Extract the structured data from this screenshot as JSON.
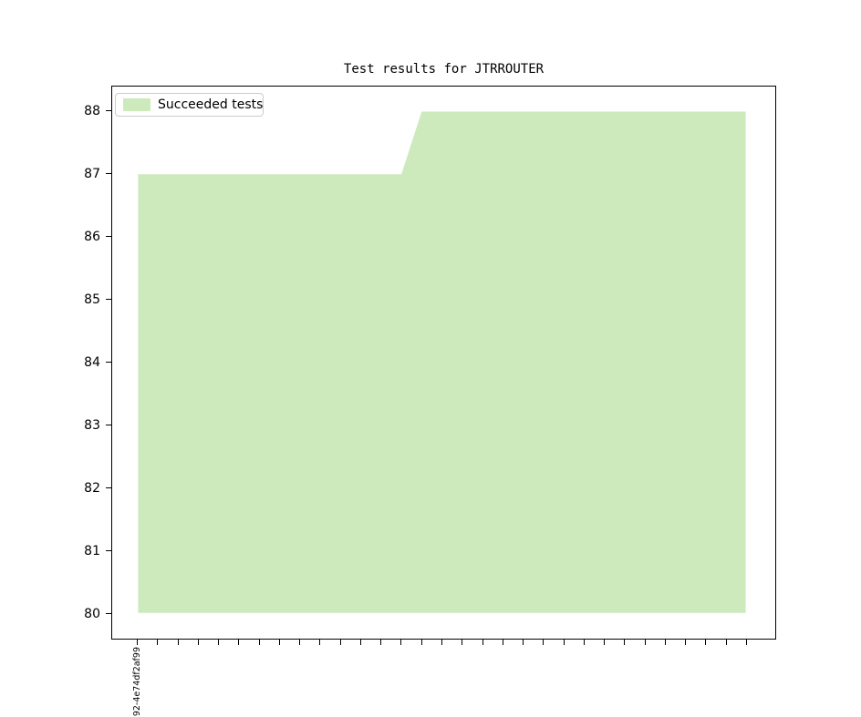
{
  "chart_data": {
    "type": "area",
    "title": "Test results for JTRROUTER",
    "legend": {
      "label": "Succeeded tests",
      "position": "upper-left"
    },
    "series": [
      {
        "name": "Succeeded tests",
        "values": [
          87,
          87,
          87,
          87,
          87,
          87,
          87,
          87,
          87,
          87,
          87,
          87,
          87,
          87,
          88,
          88,
          88,
          88,
          88,
          88,
          88,
          88,
          88,
          88,
          88,
          88,
          88,
          88,
          88,
          88,
          88
        ]
      }
    ],
    "x_tick_count": 31,
    "x_tick_labels_visible": [
      "92-4e74df2af99"
    ],
    "x_label_rotation_deg": 90,
    "yticks": [
      80,
      81,
      82,
      83,
      84,
      85,
      86,
      87,
      88
    ],
    "ylim": [
      79.59,
      88.4
    ],
    "grid": false,
    "colors": {
      "fill": "#cdeabd",
      "axis": "#000000",
      "text": "#000000",
      "legend_border": "#cccccc"
    }
  }
}
